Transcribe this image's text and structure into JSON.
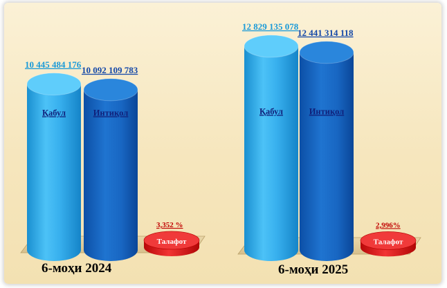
{
  "chart_data": {
    "type": "bar",
    "style": "3d-cylinder",
    "categories": [
      "6-моҳи 2024",
      "6-моҳи 2025"
    ],
    "series": [
      {
        "name": "Қабул",
        "values": [
          10445484176,
          12829135078
        ],
        "value_labels": [
          "10 445 484 176",
          "12 829 135 078"
        ],
        "color": "#2fa8e6"
      },
      {
        "name": "Интиқол",
        "values": [
          10092109783,
          12441314118
        ],
        "value_labels": [
          "10 092 109 783",
          "12 441 314 118"
        ],
        "color": "#1668c8"
      },
      {
        "name": "Талафот",
        "values": [
          3.352,
          2.996
        ],
        "value_labels": [
          "3,352  %",
          "2,996%"
        ],
        "unit": "%",
        "color": "#e01818"
      }
    ],
    "grid": false,
    "legend": "none",
    "background": "#f6e6bd"
  }
}
